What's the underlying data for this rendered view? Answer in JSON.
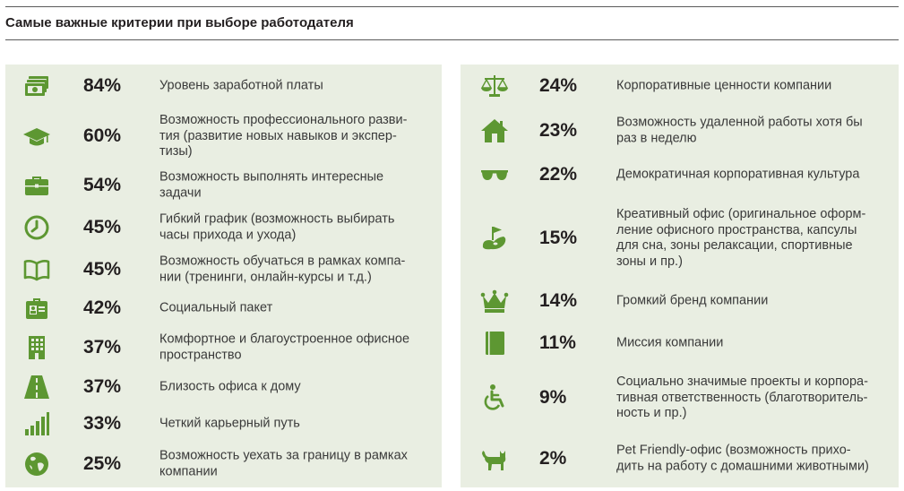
{
  "title": "Самые важные критерии при выборе работодателя",
  "accent_color": "#5d9732",
  "panel_color": "#e9eee2",
  "left": [
    {
      "icon": "money-icon",
      "percent": "84%",
      "label": "Уровень заработной платы"
    },
    {
      "icon": "graduation-cap-icon",
      "percent": "60%",
      "label": "Возможность профессионального разви-\nтия (развитие новых навыков и экспер-\nтизы)"
    },
    {
      "icon": "briefcase-icon",
      "percent": "54%",
      "label": "Возможность выполнять интересные\nзадачи"
    },
    {
      "icon": "clock-icon",
      "percent": "45%",
      "label": "Гибкий график (возможность выбирать\nчасы прихода и ухода)"
    },
    {
      "icon": "open-book-icon",
      "percent": "45%",
      "label": "Возможность обучаться в рамках компа-\nнии (тренинги, онлайн-курсы и т.д.)"
    },
    {
      "icon": "first-aid-kit-icon",
      "percent": "42%",
      "label": "Социальный пакет"
    },
    {
      "icon": "office-building-icon",
      "percent": "37%",
      "label": "Комфортное и благоустроенное офисное\nпространство"
    },
    {
      "icon": "road-icon",
      "percent": "37%",
      "label": "Близость офиса к дому"
    },
    {
      "icon": "signal-bars-icon",
      "percent": "33%",
      "label": "Четкий карьерный путь"
    },
    {
      "icon": "globe-icon",
      "percent": "25%",
      "label": "Возможность уехать за границу в рамках\nкомпании"
    }
  ],
  "right": [
    {
      "icon": "scales-icon",
      "percent": "24%",
      "label": "Корпоративные ценности компании"
    },
    {
      "icon": "house-icon",
      "percent": "23%",
      "label": "Возможность удаленной работы хотя бы\nраз в неделю"
    },
    {
      "icon": "sunglasses-icon",
      "percent": "22%",
      "label": "Демократичная корпоративная культура"
    },
    {
      "icon": "putting-green-icon",
      "percent": "15%",
      "label": "Креативный офис (оригинальное оформ-\nление офисного пространства, капсулы\nдля сна, зоны релаксации, спортивные\nзоны и пр.)"
    },
    {
      "icon": "crown-icon",
      "percent": "14%",
      "label": "Громкий бренд компании"
    },
    {
      "icon": "notebook-icon",
      "percent": "11%",
      "label": "Миссия компании"
    },
    {
      "icon": "wheelchair-icon",
      "percent": "9%",
      "label": "Социально значимые проекты и корпора-\nтивная ответственность (благотворитель-\nность и пр.)"
    },
    {
      "icon": "cat-icon",
      "percent": "2%",
      "label": "Pet Friendly-офис (возможность прихо-\nдить на работу с домашними животными)"
    }
  ]
}
